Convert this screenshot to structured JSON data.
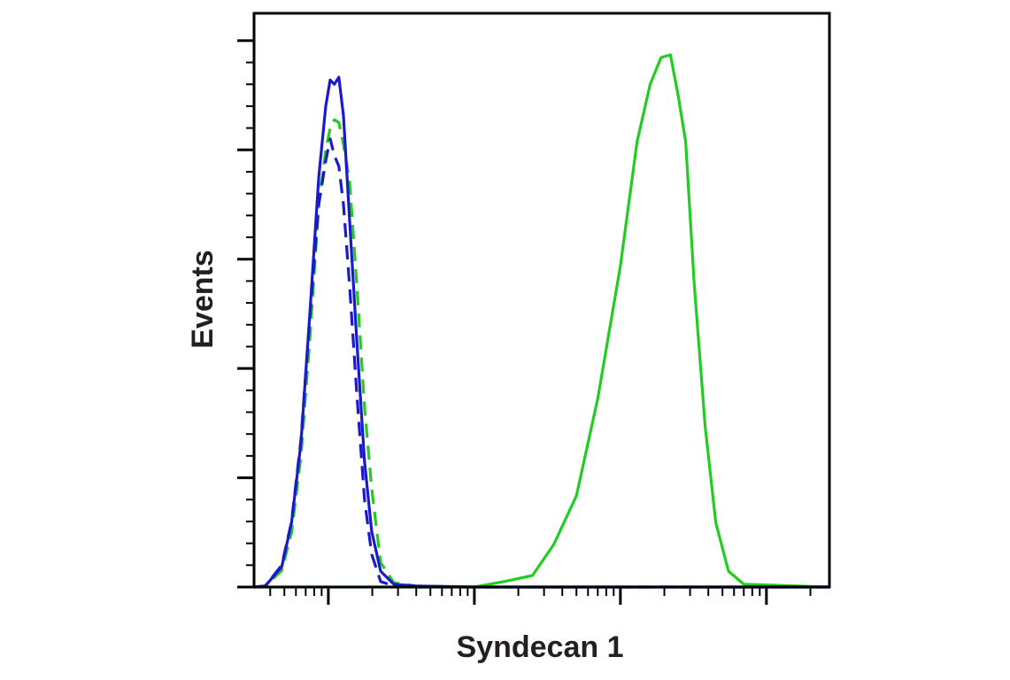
{
  "chart_data": {
    "type": "line",
    "x_label": "Syndecan 1",
    "y_label": "Events",
    "xscale": "log",
    "xlim": [
      31,
      270000
    ],
    "xticks": [
      100,
      1000,
      10000,
      100000
    ],
    "ylim": [
      0,
      105
    ],
    "yticks": [
      0,
      20,
      40,
      60,
      80,
      100
    ],
    "x": [
      31,
      37,
      48,
      56,
      65,
      75,
      86,
      96,
      103,
      110,
      118,
      127,
      140,
      156,
      177,
      198,
      228,
      281,
      398,
      1000,
      1600,
      2500,
      3500,
      5000,
      7000,
      10000,
      13000,
      16000,
      19000,
      22000,
      25000,
      28000,
      32000,
      38000,
      45000,
      55000,
      70000,
      270000
    ],
    "series": [
      {
        "color": "#22cc22",
        "dash": false,
        "values": [
          0,
          0,
          0,
          0,
          0,
          0,
          0,
          0,
          0,
          0,
          0,
          0,
          0,
          0,
          0,
          0,
          0,
          0,
          0,
          0,
          1.0,
          2.1,
          7.8,
          16.7,
          34.5,
          58.8,
          81.5,
          92,
          96.9,
          97.4,
          89.6,
          81.5,
          55.6,
          29.6,
          11.8,
          2.9,
          0.5,
          0
        ]
      },
      {
        "color": "#22cc22",
        "dash": true,
        "values": [
          0,
          0.2,
          3,
          10,
          24,
          46,
          70,
          80,
          84,
          85.5,
          85,
          81,
          74,
          56,
          33,
          18,
          4.5,
          0.8,
          0.2,
          0,
          0,
          0,
          0,
          0,
          0,
          0,
          0,
          0,
          0,
          0,
          0,
          0,
          0,
          0,
          0,
          0,
          0,
          0
        ]
      },
      {
        "color": "#1a1acc",
        "dash": true,
        "values": [
          0,
          0.2,
          4,
          12,
          27,
          50,
          70,
          78,
          82,
          79,
          77,
          70,
          55,
          36,
          16,
          6,
          1,
          0.2,
          0,
          0,
          0,
          0,
          0,
          0,
          0,
          0,
          0,
          0,
          0,
          0,
          0,
          0,
          0,
          0,
          0,
          0,
          0,
          0
        ]
      },
      {
        "color": "#1a1acc",
        "dash": false,
        "values": [
          0,
          0.2,
          3.7,
          11.8,
          26.4,
          50.7,
          75,
          88,
          92.8,
          92,
          93.3,
          86.3,
          67,
          45.8,
          23,
          10.2,
          2.9,
          0.5,
          0.2,
          0,
          0,
          0,
          0,
          0,
          0,
          0,
          0,
          0,
          0,
          0,
          0,
          0,
          0,
          0,
          0,
          0,
          0,
          0
        ]
      }
    ]
  }
}
